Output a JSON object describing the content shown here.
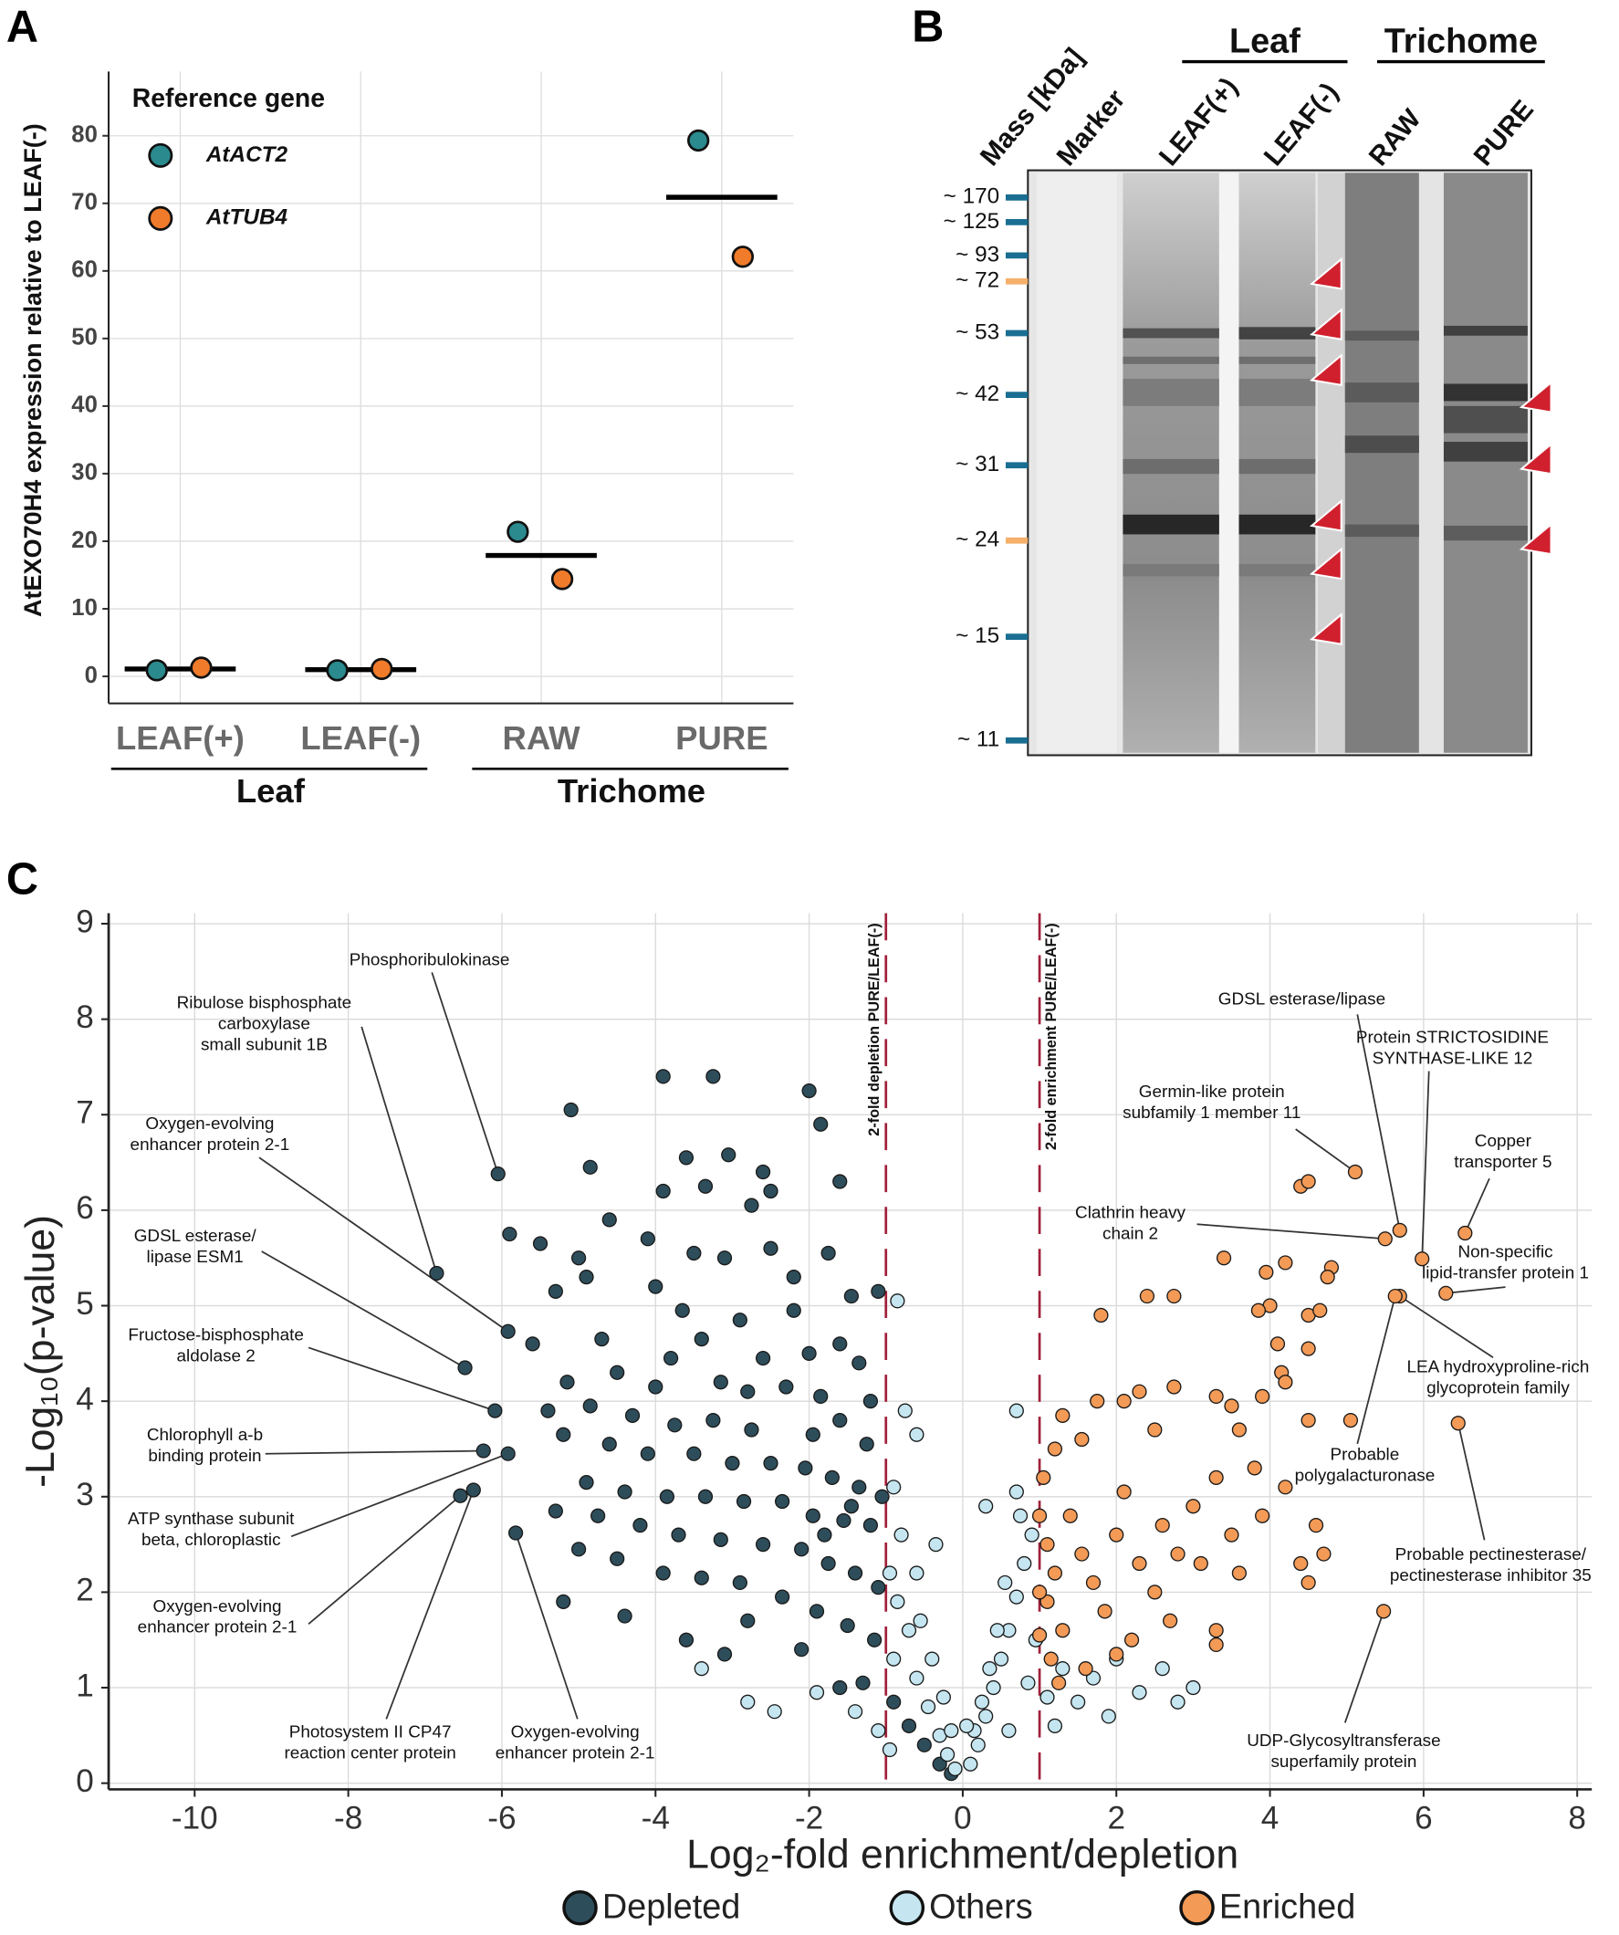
{
  "chart_data": [
    {
      "type": "dot",
      "panel_label": "A",
      "ylabel": "AtEXO70H4 expression relative to LEAF(-)",
      "legend_title": "Reference gene",
      "groups": [
        {
          "name": "Leaf",
          "categories": [
            "LEAF(+)",
            "LEAF(-)"
          ]
        },
        {
          "name": "Trichome",
          "categories": [
            "RAW",
            "PURE"
          ]
        }
      ],
      "series": [
        {
          "name": "AtACT2",
          "color": "#2a8a8e",
          "values": [
            0.9,
            0.9,
            21.4,
            79.3
          ]
        },
        {
          "name": "AtTUB4",
          "color": "#f07b2b",
          "values": [
            1.3,
            1.1,
            14.4,
            62.1
          ]
        }
      ],
      "means": [
        1.1,
        1.0,
        17.9,
        70.9
      ],
      "mean_color": "#000000",
      "ylim": [
        -4,
        89.5
      ],
      "yticks": [
        0,
        10,
        20,
        30,
        40,
        50,
        60,
        70,
        80
      ],
      "grid": true
    },
    {
      "type": "gel",
      "panel_label": "B",
      "mass_title": "Mass [kDa]",
      "marker_label": "Marker",
      "groups": [
        {
          "name": "Leaf",
          "lanes": [
            "LEAF(+)",
            "LEAF(-)"
          ]
        },
        {
          "name": "Trichome",
          "lanes": [
            "RAW",
            "PURE"
          ]
        }
      ],
      "masses": [
        {
          "label": "~ 170",
          "color": "#1a6e92"
        },
        {
          "label": "~ 125",
          "color": "#1a6e92"
        },
        {
          "label": "~ 93",
          "color": "#1a6e92"
        },
        {
          "label": "~ 72",
          "color": "#f5b06a"
        },
        {
          "label": "~ 53",
          "color": "#1a6e92"
        },
        {
          "label": "~ 42",
          "color": "#1a6e92"
        },
        {
          "label": "~ 31",
          "color": "#1a6e92"
        },
        {
          "label": "~ 24",
          "color": "#f5b06a"
        },
        {
          "label": "~ 15",
          "color": "#1a6e92"
        },
        {
          "label": "~ 11",
          "color": "#1a6e92"
        }
      ]
    },
    {
      "type": "scatter",
      "panel_label": "C",
      "xlabel": "Log₂-fold enrichment/depletion",
      "ylabel": "-Log₁₀(p-value)",
      "xlim": [
        -11.12,
        8.19
      ],
      "ylim": [
        -0.065,
        9.11
      ],
      "xticks": [
        -10,
        -8,
        -6,
        -4,
        -2,
        0,
        2,
        4,
        6,
        8
      ],
      "yticks": [
        0,
        1,
        2,
        3,
        4,
        5,
        6,
        7,
        8,
        9
      ],
      "grid": true,
      "vline_color": "#a0203a",
      "vlines": [
        {
          "x": -1,
          "label": "2-fold depletion PURE/LEAF(-)"
        },
        {
          "x": 1,
          "label": "2-fold enrichment PURE/LEAF(-)"
        }
      ],
      "series": [
        {
          "name": "Depleted",
          "color": "#2e4d5a",
          "x": [
            -6.05,
            -6.85,
            -5.92,
            -6.48,
            -6.09,
            -6.24,
            -5.92,
            -6.54,
            -6.37,
            -5.82,
            -5.1,
            -3.9,
            -3.25,
            -2.0,
            -1.85,
            -4.85,
            -3.6,
            -2.6,
            -2.5,
            -1.6,
            -3.05,
            -3.35,
            -2.75,
            -3.9,
            -4.6,
            -5.9,
            -5.5,
            -5.0,
            -4.1,
            -3.5,
            -3.1,
            -2.5,
            -2.2,
            -1.75,
            -1.1,
            -4.9,
            -5.3,
            -4.0,
            -3.65,
            -2.9,
            -2.2,
            -1.45,
            -5.6,
            -4.7,
            -3.8,
            -3.4,
            -2.6,
            -2.0,
            -1.6,
            -1.35,
            -5.15,
            -4.5,
            -4.0,
            -3.15,
            -2.8,
            -2.3,
            -1.85,
            -1.2,
            -5.4,
            -4.85,
            -4.3,
            -3.75,
            -3.25,
            -2.75,
            -1.95,
            -1.6,
            -1.25,
            -5.2,
            -4.6,
            -4.1,
            -3.5,
            -3.0,
            -2.5,
            -2.05,
            -1.7,
            -1.35,
            -4.9,
            -4.4,
            -3.85,
            -3.35,
            -2.85,
            -2.35,
            -1.95,
            -1.55,
            -1.2,
            -5.3,
            -4.75,
            -4.2,
            -3.7,
            -3.15,
            -2.6,
            -2.1,
            -1.75,
            -1.4,
            -1.1,
            -5.0,
            -4.5,
            -3.9,
            -3.4,
            -2.9,
            -2.35,
            -1.9,
            -1.5,
            -1.15,
            -5.2,
            -4.4,
            -3.6,
            -3.1,
            -2.1,
            -1.3,
            -0.9,
            -0.7,
            -0.5,
            -0.3,
            -0.15,
            -1.6,
            -2.8,
            -1.8,
            -1.45,
            -1.05
          ],
          "values": [
            6.38,
            5.34,
            4.73,
            4.35,
            3.9,
            3.48,
            3.45,
            3.01,
            3.07,
            2.62,
            7.05,
            7.4,
            7.4,
            7.25,
            6.9,
            6.45,
            6.55,
            6.4,
            6.2,
            6.3,
            6.58,
            6.25,
            6.05,
            6.2,
            5.9,
            5.75,
            5.65,
            5.5,
            5.7,
            5.55,
            5.5,
            5.6,
            5.3,
            5.55,
            5.15,
            5.3,
            5.15,
            5.2,
            4.95,
            4.85,
            4.95,
            5.1,
            4.6,
            4.65,
            4.45,
            4.65,
            4.45,
            4.5,
            4.6,
            4.4,
            4.2,
            4.3,
            4.15,
            4.2,
            4.1,
            4.15,
            4.05,
            4.0,
            3.9,
            3.95,
            3.85,
            3.75,
            3.8,
            3.7,
            3.65,
            3.8,
            3.55,
            3.65,
            3.55,
            3.45,
            3.45,
            3.35,
            3.35,
            3.3,
            3.2,
            3.1,
            3.15,
            3.05,
            3.0,
            3.0,
            2.95,
            2.95,
            2.8,
            2.75,
            2.7,
            2.85,
            2.8,
            2.7,
            2.6,
            2.55,
            2.5,
            2.45,
            2.3,
            2.2,
            2.05,
            2.45,
            2.35,
            2.2,
            2.15,
            2.1,
            1.95,
            1.8,
            1.65,
            1.5,
            1.9,
            1.75,
            1.5,
            1.35,
            1.4,
            1.05,
            0.85,
            0.6,
            0.4,
            0.2,
            0.1,
            1.0,
            1.7,
            2.6,
            2.9,
            3.0
          ],
          "labels": [
            "Phosphoribulokinase",
            "Ribulose bisphosphate\ncarboxylase\nsmall subunit 1B",
            "Oxygen-evolving\nenhancer protein 2-1",
            "GDSL esterase/\nlipase ESM1",
            "Fructose-bisphosphate\naldolase 2",
            "Chlorophyll a-b\nbinding protein",
            "ATP synthase subunit\nbeta, chloroplastic",
            "Oxygen-evolving\nenhancer protein 2-1",
            "Photosystem II CP47\nreaction center protein",
            "Oxygen-evolving\nenhancer protein 2-1",
            null,
            null,
            null,
            null,
            null,
            null,
            null,
            null,
            null,
            null,
            null,
            null,
            null,
            null,
            null,
            null,
            null,
            null,
            null,
            null,
            null,
            null,
            null,
            null,
            null,
            null,
            null,
            null,
            null,
            null,
            null,
            null,
            null,
            null,
            null,
            null,
            null,
            null,
            null,
            null,
            null,
            null,
            null,
            null,
            null,
            null,
            null,
            null,
            null,
            null,
            null,
            null,
            null,
            null,
            null,
            null,
            null,
            null,
            null,
            null,
            null,
            null,
            null,
            null,
            null,
            null,
            null,
            null,
            null,
            null,
            null,
            null,
            null,
            null,
            null,
            null,
            null,
            null,
            null,
            null,
            null,
            null,
            null,
            null,
            null,
            null,
            null,
            null,
            null,
            null,
            null,
            null,
            null,
            null,
            null,
            null,
            null,
            null,
            null,
            null,
            null,
            null,
            null,
            null,
            null,
            null,
            null,
            null,
            null,
            null
          ]
        },
        {
          "name": "Others",
          "color": "#c5e6f0",
          "x": [
            -0.85,
            -0.75,
            -0.6,
            -0.9,
            -0.8,
            -0.95,
            -0.85,
            -0.7,
            -0.9,
            -0.6,
            -0.45,
            -0.3,
            -0.2,
            -0.1,
            -2.8,
            -2.45,
            -3.4,
            -1.9,
            -1.4,
            -1.1,
            -0.95,
            -0.6,
            -0.55,
            -0.4,
            -0.25,
            0.1,
            0.2,
            0.3,
            0.4,
            0.5,
            0.6,
            0.7,
            0.8,
            0.9,
            0.75,
            0.3,
            0.7,
            0.7,
            0.55,
            0.45,
            0.35,
            0.25,
            0.15,
            1.1,
            1.3,
            1.5,
            1.7,
            2.0,
            2.3,
            2.6,
            2.8,
            3.0,
            1.9,
            1.2,
            0.95,
            0.85,
            -0.35,
            -0.15,
            0.05,
            0.6
          ],
          "values": [
            5.05,
            3.9,
            3.65,
            3.1,
            2.6,
            2.2,
            1.9,
            1.6,
            1.3,
            1.1,
            0.8,
            0.5,
            0.3,
            0.15,
            0.85,
            0.75,
            1.2,
            0.95,
            0.75,
            0.55,
            0.35,
            2.2,
            1.7,
            1.3,
            0.9,
            0.2,
            0.4,
            0.7,
            1.0,
            1.3,
            1.6,
            1.95,
            2.3,
            2.6,
            2.8,
            2.9,
            3.05,
            3.9,
            2.1,
            1.6,
            1.2,
            0.85,
            0.55,
            0.9,
            1.2,
            0.85,
            1.1,
            1.3,
            0.95,
            1.2,
            0.85,
            1.0,
            0.7,
            0.6,
            1.5,
            1.05,
            2.5,
            0.55,
            0.6,
            0.55
          ]
        },
        {
          "name": "Enriched",
          "color": "#f39a56",
          "x": [
            5.69,
            5.98,
            5.11,
            6.54,
            5.5,
            6.29,
            5.69,
            5.63,
            6.45,
            5.48,
            1.05,
            1.2,
            1.3,
            1.55,
            1.75,
            1.8,
            2.4,
            2.75,
            3.4,
            3.95,
            4.2,
            4.0,
            4.4,
            4.5,
            4.8,
            4.75,
            4.5,
            4.65,
            3.85,
            4.1,
            4.5,
            2.1,
            2.3,
            2.5,
            2.75,
            3.3,
            3.5,
            3.6,
            3.9,
            4.15,
            4.2,
            4.5,
            5.05,
            1.1,
            1.2,
            1.1,
            1.3,
            1.15,
            1.4,
            1.55,
            1.7,
            1.85,
            2.0,
            2.1,
            2.3,
            2.5,
            2.6,
            2.8,
            3.0,
            3.1,
            3.3,
            3.5,
            3.6,
            3.8,
            3.9,
            4.2,
            4.4,
            4.6,
            4.7,
            4.5,
            2.2,
            2.7,
            3.3,
            3.3,
            2.0,
            1.6,
            1.25,
            1.0,
            1.0,
            1.0
          ],
          "values": [
            5.79,
            5.49,
            6.4,
            5.76,
            5.7,
            5.13,
            5.1,
            5.1,
            3.77,
            1.8,
            3.2,
            3.5,
            3.85,
            3.6,
            4.0,
            4.9,
            5.1,
            5.1,
            5.5,
            5.35,
            5.45,
            5.0,
            6.25,
            6.3,
            5.4,
            5.3,
            4.9,
            4.95,
            4.95,
            4.6,
            4.55,
            4.0,
            4.1,
            3.7,
            4.15,
            4.05,
            3.95,
            3.7,
            4.05,
            4.3,
            4.2,
            3.8,
            3.8,
            2.5,
            2.2,
            1.9,
            1.6,
            1.3,
            2.8,
            2.4,
            2.1,
            1.8,
            2.6,
            3.05,
            2.3,
            2.0,
            2.7,
            2.4,
            2.9,
            2.3,
            3.2,
            2.6,
            2.2,
            3.3,
            2.8,
            3.1,
            2.3,
            2.7,
            2.4,
            2.1,
            1.5,
            1.7,
            1.6,
            1.45,
            1.35,
            1.2,
            1.05,
            1.55,
            2.0,
            2.8
          ],
          "labels": [
            "GDSL esterase/lipase",
            "Protein STRICTOSIDINE\nSYNTHASE-LIKE 12",
            "Germin-like protein\nsubfamily 1 member 11",
            "Copper\ntransporter 5",
            "Clathrin heavy\nchain 2",
            "Non-specific\nlipid-transfer protein 1",
            "LEA hydroxyproline-rich\nglycoprotein family",
            "Probable\npolygalacturonase",
            "Probable pectinesterase/\npectinesterase inhibitor 35",
            "UDP-Glycosyltransferase\nsuperfamily protein",
            null,
            null,
            null,
            null,
            null,
            null,
            null,
            null,
            null,
            null,
            null,
            null,
            null,
            null,
            null,
            null,
            null,
            null,
            null,
            null,
            null,
            null,
            null,
            null,
            null,
            null,
            null,
            null,
            null,
            null,
            null,
            null,
            null,
            null,
            null,
            null,
            null,
            null,
            null,
            null,
            null,
            null,
            null,
            null,
            null,
            null,
            null,
            null,
            null,
            null,
            null,
            null,
            null,
            null,
            null,
            null,
            null,
            null,
            null,
            null,
            null,
            null,
            null,
            null,
            null,
            null,
            null,
            null,
            null,
            null
          ]
        }
      ]
    }
  ]
}
